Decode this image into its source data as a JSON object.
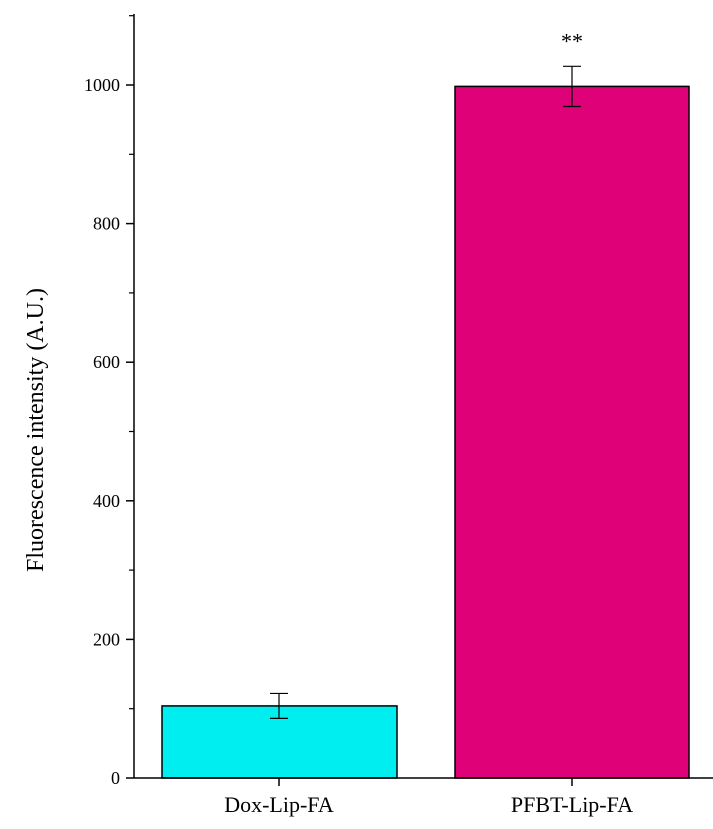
{
  "chart_data": {
    "type": "bar",
    "categories": [
      "Dox-Lip-FA",
      "PFBT-Lip-FA"
    ],
    "values": [
      104,
      998
    ],
    "errors": [
      18,
      29
    ],
    "colors": [
      "#00eef0",
      "#df0177"
    ],
    "annotations": [
      "",
      "**"
    ],
    "title": "",
    "xlabel": "",
    "ylabel": "Fluorescence intensity (A.U.)",
    "ylim": [
      0,
      1100
    ],
    "yticks": [
      "0",
      "200",
      "400",
      "600",
      "800",
      "1000"
    ],
    "ytick_values": [
      0,
      200,
      400,
      600,
      800,
      1000
    ],
    "yminor_tick_values": [
      100,
      300,
      500,
      700,
      900,
      1100
    ],
    "grid": false,
    "legend": "none"
  }
}
